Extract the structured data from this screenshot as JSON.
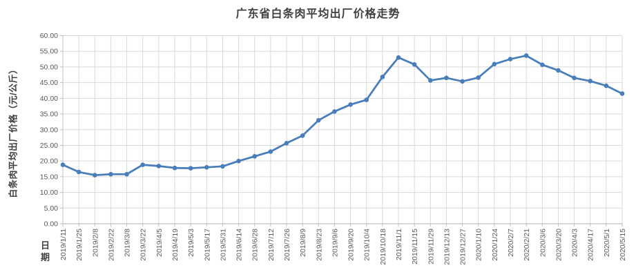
{
  "page": {
    "background": "#ffffff"
  },
  "chart_data": {
    "type": "line",
    "title": "广东省白条肉平均出厂价格走势",
    "xlabel": "日期",
    "ylabel": "白条肉平均出厂价格（元/公斤）",
    "legend": "none",
    "grid": true,
    "ylim": [
      0,
      60
    ],
    "ytick_step": 5,
    "ytick_decimals": 2,
    "categories": [
      "2019/1/11",
      "2019/1/25",
      "2019/2/8",
      "2019/2/22",
      "2019/3/8",
      "2019/3/22",
      "2019/4/5",
      "2019/4/19",
      "2019/5/3",
      "2019/5/17",
      "2019/5/31",
      "2019/6/14",
      "2019/6/28",
      "2019/7/12",
      "2019/7/26",
      "2019/8/9",
      "2019/8/23",
      "2019/9/6",
      "2019/9/20",
      "2019/10/4",
      "2019/10/18",
      "2019/11/1",
      "2019/11/15",
      "2019/11/29",
      "2019/12/13",
      "2019/12/27",
      "2020/1/10",
      "2020/1/24",
      "2020/2/7",
      "2020/2/21",
      "2020/3/6",
      "2020/3/20",
      "2020/4/3",
      "2020/4/17",
      "2020/5/1",
      "2020/5/15"
    ],
    "values": [
      18.8,
      16.5,
      15.5,
      15.8,
      15.8,
      18.8,
      18.4,
      17.8,
      17.7,
      18.0,
      18.3,
      20.0,
      21.5,
      23.0,
      25.7,
      28.1,
      33.0,
      35.8,
      38.0,
      39.5,
      46.8,
      53.0,
      50.8,
      45.7,
      46.5,
      45.4,
      46.6,
      50.9,
      52.5,
      53.6,
      50.7,
      48.9,
      46.5,
      45.5,
      44.0,
      41.5
    ],
    "colors": {
      "line": "#4A7EBB",
      "marker": "#4A7EBB",
      "gridline": "#D9D9D9",
      "axis": "#BFBFBF",
      "tick_label": "#595959",
      "title": "#404040"
    }
  }
}
